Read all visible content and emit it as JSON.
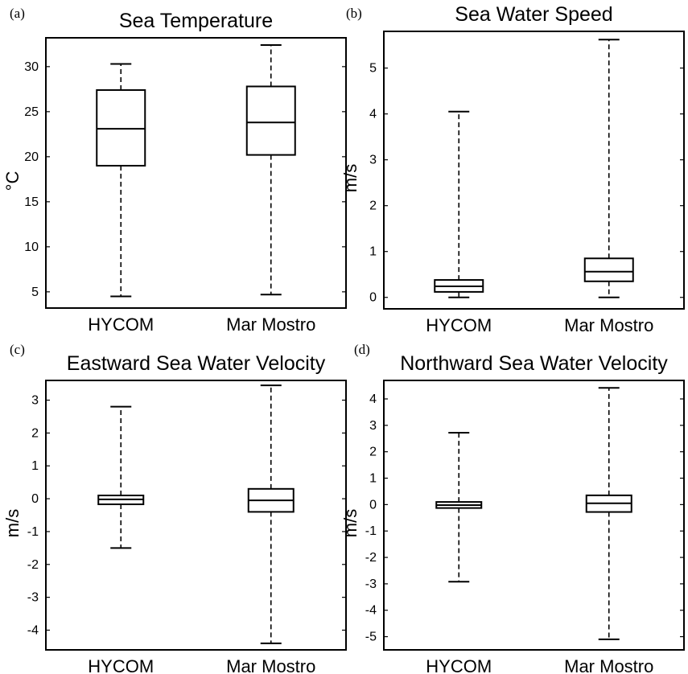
{
  "chart_data": [
    {
      "type": "box",
      "panel_label": "(a)",
      "title": "Sea Temperature",
      "ylabel": "°C",
      "ylim": [
        3.2,
        33.2
      ],
      "yticks": [
        5,
        10,
        15,
        20,
        25,
        30
      ],
      "ytick_labels": [
        "5",
        "10",
        "15",
        "20",
        "25",
        "30"
      ],
      "categories": [
        "HYCOM",
        "Mar Mostro"
      ],
      "boxes": [
        {
          "min": 4.5,
          "q1": 19.0,
          "median": 23.1,
          "q3": 27.4,
          "max": 30.3
        },
        {
          "min": 4.7,
          "q1": 20.2,
          "median": 23.8,
          "q3": 27.8,
          "max": 32.4
        }
      ]
    },
    {
      "type": "box",
      "panel_label": "(b)",
      "title": "Sea Water Speed",
      "ylabel": "m/s",
      "ylim": [
        -0.25,
        5.8
      ],
      "yticks": [
        0,
        1,
        2,
        3,
        4,
        5
      ],
      "ytick_labels": [
        "0",
        "1",
        "2",
        "3",
        "4",
        "5"
      ],
      "categories": [
        "HYCOM",
        "Mar Mostro"
      ],
      "boxes": [
        {
          "min": 0.0,
          "q1": 0.12,
          "median": 0.24,
          "q3": 0.38,
          "max": 4.05
        },
        {
          "min": 0.0,
          "q1": 0.35,
          "median": 0.56,
          "q3": 0.85,
          "max": 5.62
        }
      ]
    },
    {
      "type": "box",
      "panel_label": "(c)",
      "title": "Eastward Sea Water Velocity",
      "ylabel": "m/s",
      "ylim": [
        -4.6,
        3.6
      ],
      "yticks": [
        -4,
        -3,
        -2,
        -1,
        0,
        1,
        2,
        3
      ],
      "ytick_labels": [
        "-4",
        "-3",
        "-2",
        "-1",
        "0",
        "1",
        "2",
        "3"
      ],
      "categories": [
        "HYCOM",
        "Mar Mostro"
      ],
      "boxes": [
        {
          "min": -1.5,
          "q1": -0.17,
          "median": -0.02,
          "q3": 0.1,
          "max": 2.8
        },
        {
          "min": -4.4,
          "q1": -0.4,
          "median": -0.05,
          "q3": 0.3,
          "max": 3.45
        }
      ]
    },
    {
      "type": "box",
      "panel_label": "(d)",
      "title": "Northward Sea Water Velocity",
      "ylabel": "m/s",
      "ylim": [
        -5.5,
        4.7
      ],
      "yticks": [
        -5,
        -4,
        -3,
        -2,
        -1,
        0,
        1,
        2,
        3,
        4
      ],
      "ytick_labels": [
        "-5",
        "-4",
        "-3",
        "-2",
        "-1",
        "0",
        "1",
        "2",
        "3",
        "4"
      ],
      "categories": [
        "HYCOM",
        "Mar Mostro"
      ],
      "boxes": [
        {
          "min": -2.92,
          "q1": -0.13,
          "median": -0.02,
          "q3": 0.1,
          "max": 2.72
        },
        {
          "min": -5.1,
          "q1": -0.28,
          "median": 0.05,
          "q3": 0.35,
          "max": 4.42
        }
      ]
    }
  ]
}
